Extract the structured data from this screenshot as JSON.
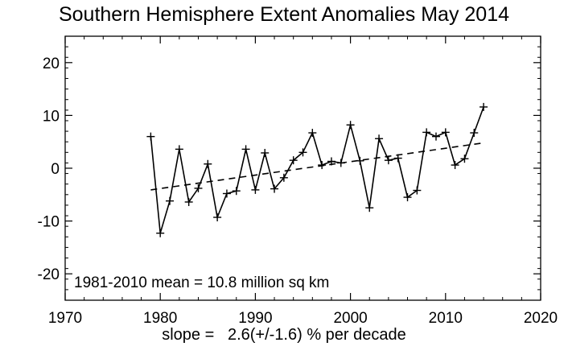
{
  "chart_data": {
    "type": "line",
    "title": "Southern Hemisphere Extent Anomalies May 2014",
    "xlabel": "",
    "ylabel": "",
    "xlim": [
      1970,
      2020
    ],
    "ylim": [
      -25,
      25
    ],
    "xticks": [
      1970,
      1980,
      1990,
      2000,
      2010,
      2020
    ],
    "yticks": [
      -20,
      -10,
      0,
      10,
      20
    ],
    "grid": false,
    "series": [
      {
        "x": [
          1979,
          1980,
          1981,
          1982,
          1983,
          1984,
          1985,
          1986,
          1987,
          1988,
          1989,
          1990,
          1991,
          1992,
          1993,
          1994,
          1995,
          1996,
          1997,
          1998,
          1999,
          2000,
          2001,
          2002,
          2003,
          2004,
          2005,
          2006,
          2007,
          2008,
          2009,
          2010,
          2011,
          2012,
          2013,
          2014
        ],
        "values": [
          6.0,
          -12.3,
          -6.2,
          3.6,
          -6.4,
          -3.8,
          0.8,
          -9.3,
          -4.8,
          -4.3,
          3.6,
          -4.1,
          2.9,
          -3.9,
          -1.8,
          1.5,
          3.0,
          6.7,
          0.6,
          1.3,
          1.0,
          8.2,
          1.4,
          -7.5,
          5.6,
          1.5,
          1.9,
          -5.5,
          -4.2,
          6.8,
          6.0,
          6.8,
          0.6,
          1.8,
          6.7,
          11.6
        ],
        "line_style": "solid",
        "marker": "plus",
        "color": "#000000"
      }
    ],
    "trend_line": {
      "x": [
        1979,
        2014
      ],
      "values": [
        -4.1,
        4.8
      ],
      "line_style": "dashed"
    },
    "annotations": {
      "mean_text": "1981-2010 mean =  10.8 million sq km",
      "slope_text": "slope =   2.6(+/-1.6) % per decade"
    }
  }
}
